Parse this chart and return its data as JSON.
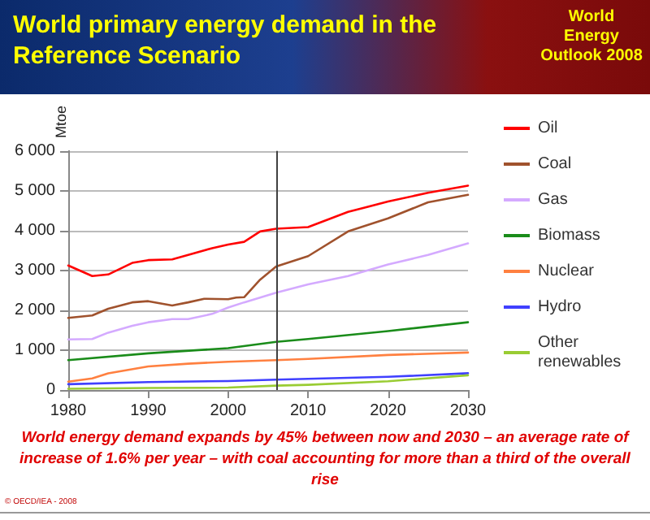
{
  "chart_data": {
    "type": "line",
    "title": "World primary energy demand in the Reference Scenario",
    "ylabel": "Mtoe",
    "annotations": [
      "World Energy Outlook 2008",
      "World energy demand expands by 45% between now and 2030 – an average rate of increase of 1.6% per year – with coal accounting for more than a third of the overall rise",
      "© OECD/IEA - 2008"
    ],
    "xlim": [
      1980,
      2030
    ],
    "xticks": [
      1980,
      1990,
      2000,
      2010,
      2020,
      2030
    ],
    "ylim": [
      0,
      6000
    ],
    "yticks": [
      0,
      {
        "value": 1000,
        "label": "1 000"
      },
      {
        "value": 2000,
        "label": "2 000"
      },
      {
        "value": 3000,
        "label": "3 000"
      },
      {
        "value": 4000,
        "label": "4 000"
      },
      {
        "value": 5000,
        "label": "5 000"
      },
      {
        "value": 6000,
        "label": "6 000"
      }
    ],
    "grid": "y",
    "legend": "right",
    "marker": "none",
    "line_style": "solid",
    "ref_lines": [
      {
        "axis": "x",
        "value": 2006,
        "color": "#404040"
      }
    ],
    "series": [
      {
        "name": "Oil",
        "color": "#ff0000",
        "x": [
          1980,
          1983,
          1985,
          1988,
          1990,
          1993,
          1995,
          1998,
          2000,
          2002,
          2004,
          2006,
          2010,
          2015,
          2020,
          2025,
          2030
        ],
        "values": [
          3125,
          2860,
          2900,
          3190,
          3260,
          3280,
          3390,
          3560,
          3650,
          3720,
          3980,
          4050,
          4090,
          4470,
          4730,
          4950,
          5130
        ]
      },
      {
        "name": "Coal",
        "color": "#a0522d",
        "x": [
          1980,
          1983,
          1985,
          1988,
          1990,
          1993,
          1995,
          1997,
          2000,
          2001,
          2002,
          2004,
          2006,
          2010,
          2015,
          2020,
          2025,
          2030
        ],
        "values": [
          1810,
          1870,
          2040,
          2200,
          2230,
          2120,
          2200,
          2290,
          2280,
          2320,
          2330,
          2770,
          3100,
          3360,
          3980,
          4310,
          4710,
          4900
        ]
      },
      {
        "name": "Gas",
        "color": "#d4aaff",
        "x": [
          1980,
          1983,
          1985,
          1988,
          1990,
          1993,
          1995,
          1998,
          2000,
          2002,
          2006,
          2010,
          2015,
          2020,
          2025,
          2030
        ],
        "values": [
          1270,
          1280,
          1440,
          1610,
          1700,
          1780,
          1780,
          1910,
          2070,
          2200,
          2440,
          2650,
          2860,
          3150,
          3390,
          3680
        ]
      },
      {
        "name": "Biomass",
        "color": "#1a8c1a",
        "x": [
          1980,
          1990,
          2000,
          2006,
          2010,
          2020,
          2030
        ],
        "values": [
          750,
          920,
          1050,
          1210,
          1280,
          1480,
          1700
        ]
      },
      {
        "name": "Nuclear",
        "color": "#ff8040",
        "x": [
          1980,
          1983,
          1985,
          1990,
          1995,
          2000,
          2006,
          2010,
          2020,
          2030
        ],
        "values": [
          210,
          290,
          420,
          590,
          660,
          710,
          750,
          780,
          880,
          940
        ]
      },
      {
        "name": "Hydro",
        "color": "#4040ff",
        "x": [
          1980,
          1990,
          2000,
          2006,
          2010,
          2020,
          2030
        ],
        "values": [
          145,
          200,
          225,
          260,
          280,
          330,
          420
        ]
      },
      {
        "name": "Other renewables",
        "color": "#99cc33",
        "x": [
          1980,
          1990,
          2000,
          2006,
          2010,
          2020,
          2030
        ],
        "values": [
          30,
          50,
          60,
          110,
          130,
          220,
          370
        ]
      }
    ]
  }
}
